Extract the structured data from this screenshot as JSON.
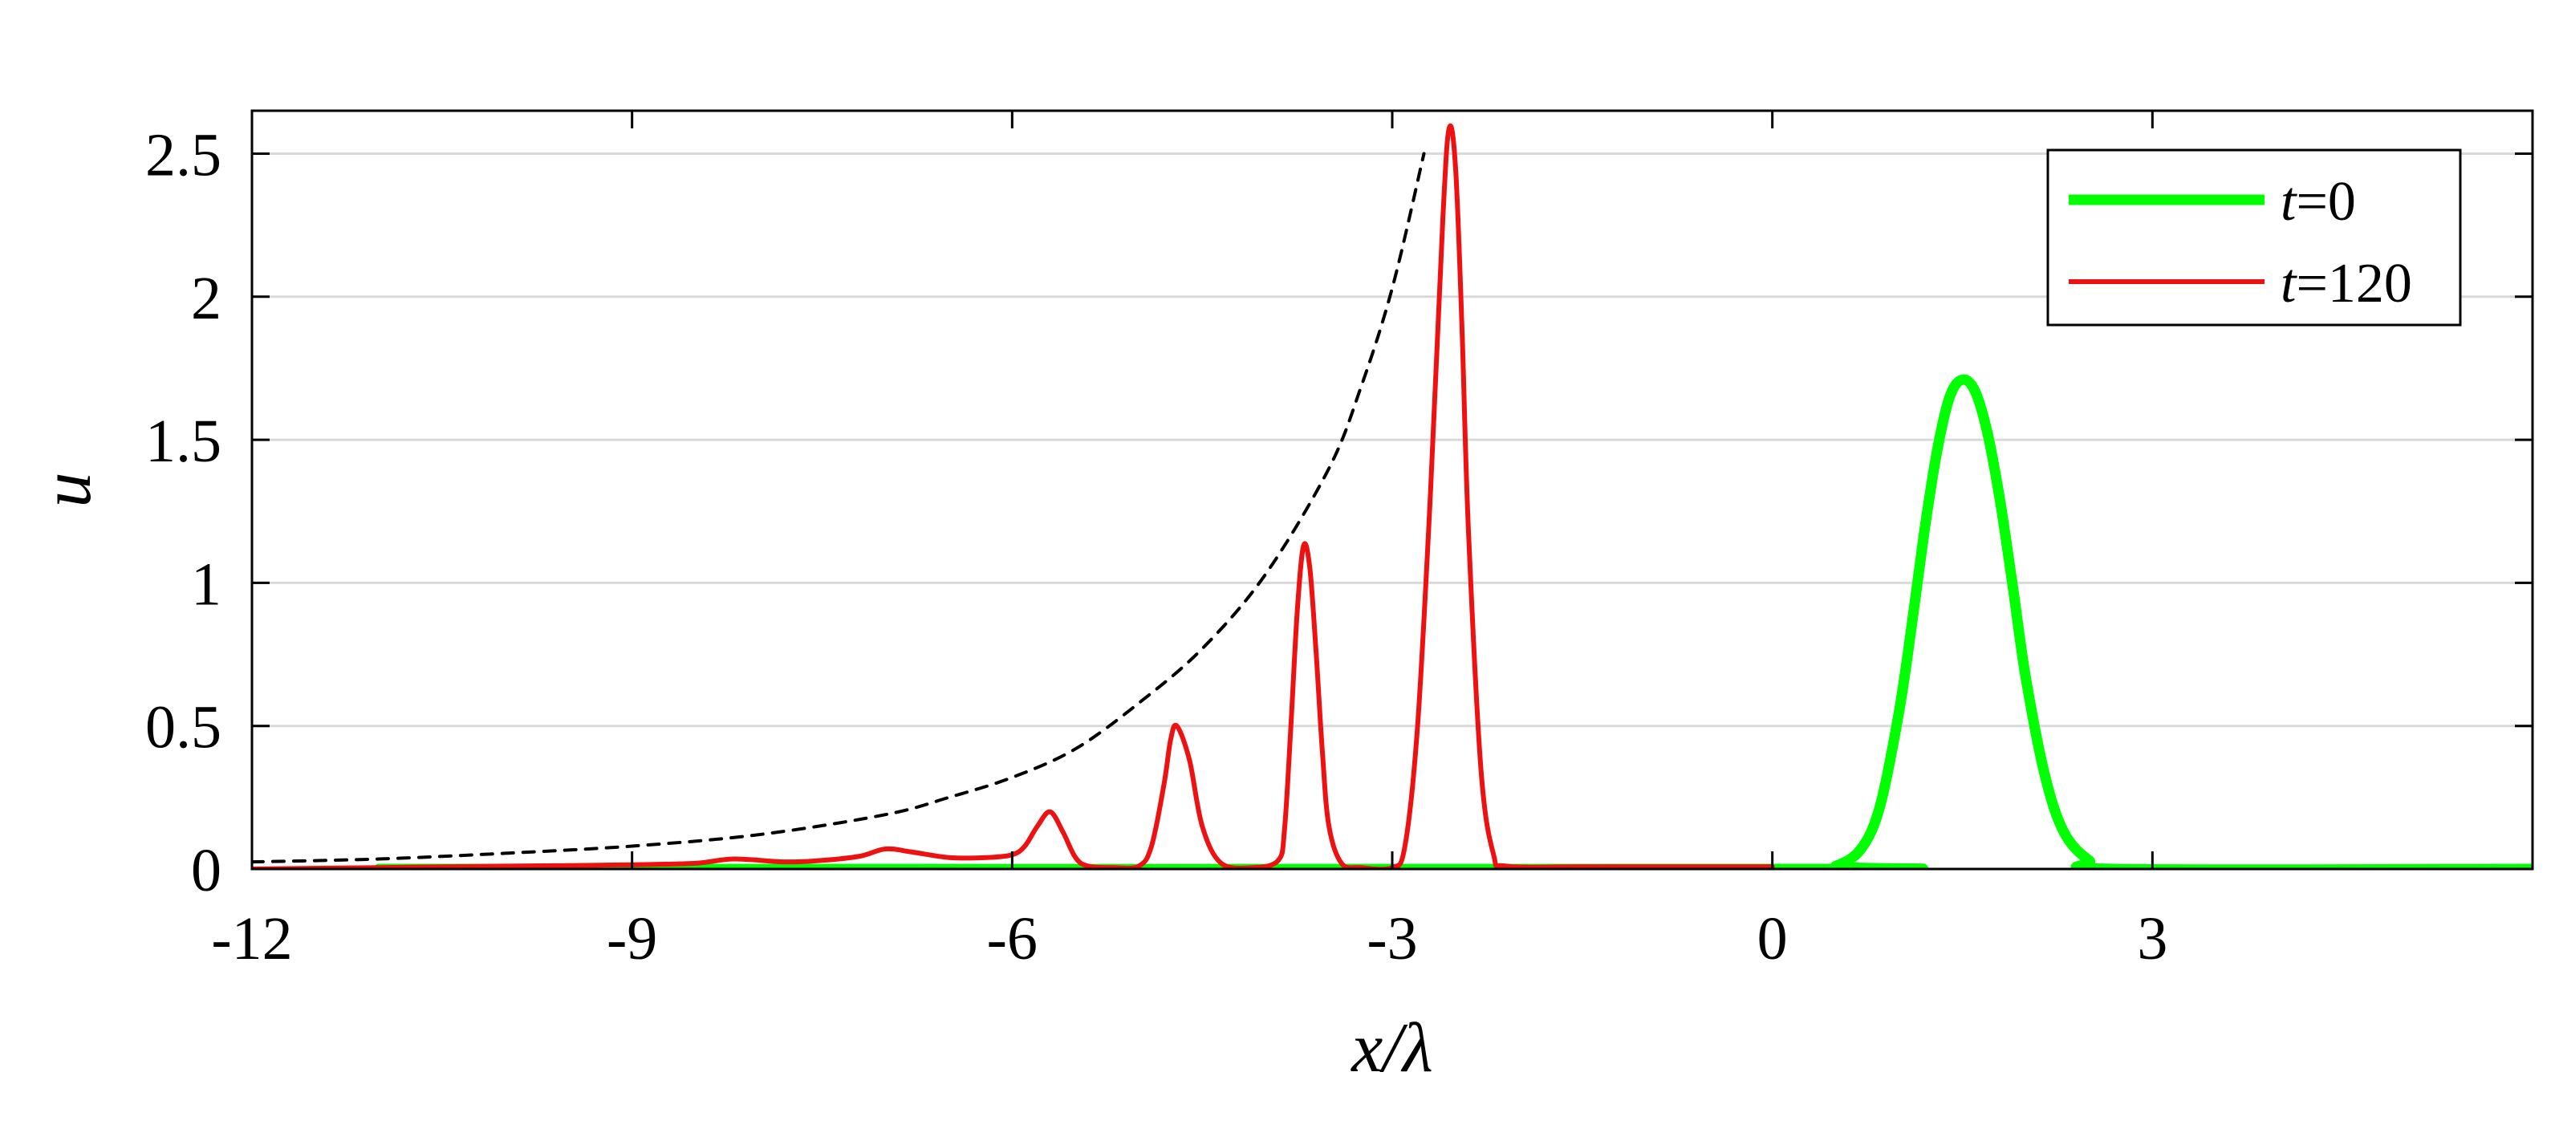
{
  "chart_data": {
    "type": "line",
    "title": "",
    "xlabel": "x/λ",
    "ylabel": "u",
    "xlim": [
      -12,
      6
    ],
    "ylim": [
      0,
      2.65
    ],
    "xticks": [
      -12,
      -9,
      -6,
      -3,
      0,
      3
    ],
    "xtick_labels": [
      "-12",
      "-9",
      "-6",
      "-3",
      "0",
      "3"
    ],
    "yticks": [
      0,
      0.5,
      1,
      1.5,
      2,
      2.5
    ],
    "ytick_labels": [
      "0",
      "0.5",
      "1",
      "1.5",
      "2",
      "2.5"
    ],
    "grid": "horizontal",
    "legend_position": "top-right",
    "series": [
      {
        "name": "t=0",
        "label_var": "t",
        "label_rest": "=0",
        "color": "#00ff00",
        "style": "solid-thick",
        "x": [
          -11,
          0.3,
          0.5,
          0.7,
          0.85,
          1.0,
          1.1,
          1.2,
          1.3,
          1.4,
          1.5,
          1.6,
          1.7,
          1.8,
          1.9,
          2.0,
          2.15,
          2.3,
          2.5,
          2.7,
          6
        ],
        "y": [
          0,
          0,
          0.01,
          0.07,
          0.22,
          0.55,
          0.85,
          1.18,
          1.46,
          1.65,
          1.71,
          1.67,
          1.52,
          1.28,
          0.98,
          0.67,
          0.33,
          0.13,
          0.03,
          0,
          0
        ]
      },
      {
        "name": "t=120",
        "label_var": "t",
        "label_rest": "=120",
        "color": "#ee1111",
        "style": "solid",
        "x": [
          -12,
          -11,
          -10,
          -9.5,
          -9,
          -8.5,
          -8.2,
          -7.8,
          -7.5,
          -7.2,
          -7.0,
          -6.8,
          -6.5,
          -6.2,
          -6.0,
          -5.9,
          -5.8,
          -5.7,
          -5.6,
          -5.5,
          -5.4,
          -5.2,
          -5.0,
          -4.9,
          -4.8,
          -4.75,
          -4.7,
          -4.6,
          -4.5,
          -4.35,
          -4.1,
          -3.9,
          -3.85,
          -3.8,
          -3.75,
          -3.7,
          -3.65,
          -3.6,
          -3.55,
          -3.5,
          -3.4,
          -3.25,
          -3.0,
          -2.9,
          -2.8,
          -2.7,
          -2.6,
          -2.55,
          -2.5,
          -2.45,
          -2.4,
          -2.3,
          -2.2,
          -2.1,
          -1.5,
          -0.8,
          0
        ],
        "y": [
          0,
          0.005,
          0.01,
          0.012,
          0.015,
          0.02,
          0.035,
          0.025,
          0.03,
          0.045,
          0.07,
          0.06,
          0.04,
          0.04,
          0.05,
          0.08,
          0.15,
          0.2,
          0.13,
          0.04,
          0.01,
          0.005,
          0.01,
          0.08,
          0.3,
          0.45,
          0.5,
          0.38,
          0.15,
          0.02,
          0.005,
          0.03,
          0.14,
          0.5,
          0.9,
          1.13,
          1.05,
          0.75,
          0.4,
          0.15,
          0.02,
          0.005,
          0.005,
          0.08,
          0.5,
          1.3,
          2.28,
          2.59,
          2.45,
          1.9,
          1.2,
          0.35,
          0.05,
          0.01,
          0.008,
          0.008,
          0.008
        ]
      },
      {
        "name": "",
        "color": "#000000",
        "style": "dashed",
        "x": [
          -12,
          -11,
          -10,
          -9,
          -8,
          -7,
          -6.5,
          -6,
          -5.5,
          -5,
          -4.5,
          -4,
          -3.5,
          -3.25,
          -3,
          -2.75
        ],
        "y": [
          0.025,
          0.035,
          0.055,
          0.08,
          0.12,
          0.19,
          0.25,
          0.32,
          0.42,
          0.58,
          0.77,
          1.03,
          1.4,
          1.68,
          2.03,
          2.5
        ]
      }
    ]
  }
}
